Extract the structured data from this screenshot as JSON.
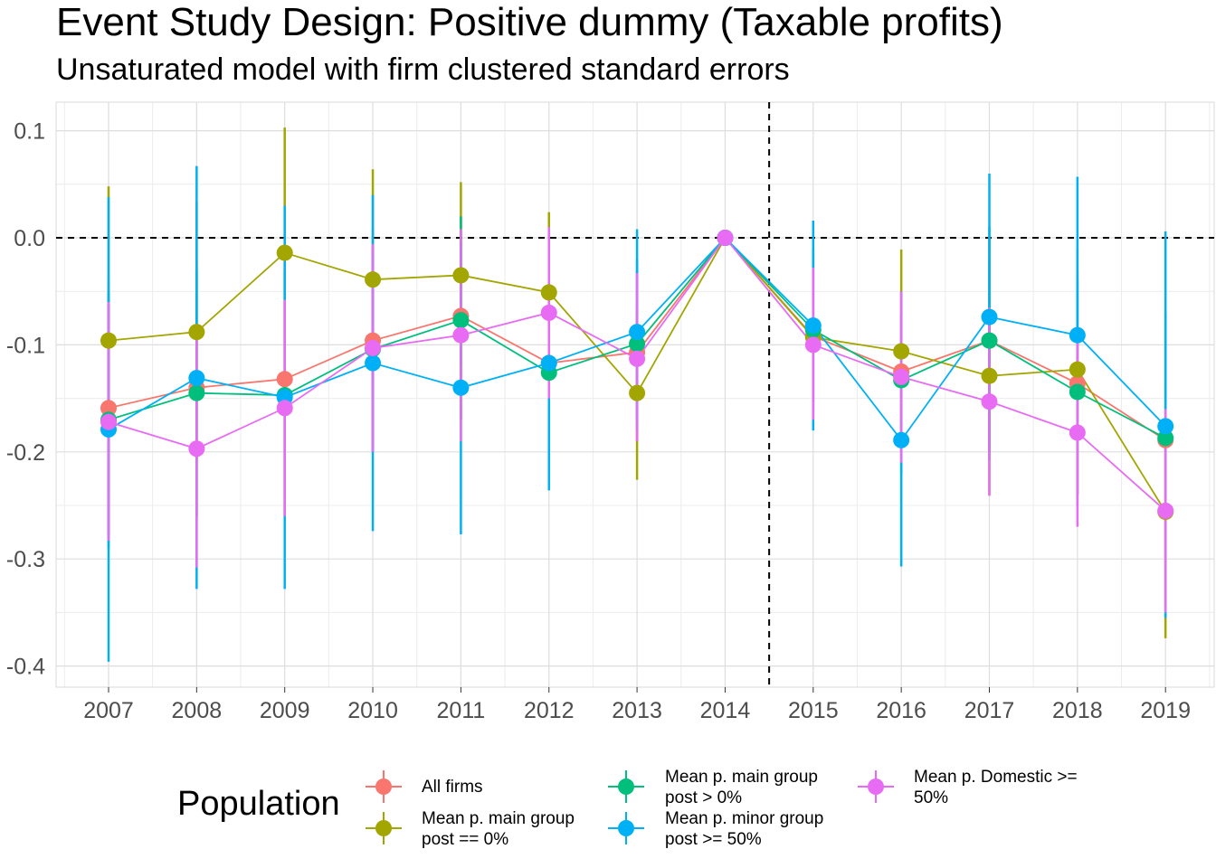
{
  "title": "Event Study Design: Positive dummy (Taxable profits)",
  "subtitle": "Unsaturated model with firm clustered standard errors",
  "chart_data": {
    "type": "line",
    "x": [
      "2007",
      "2008",
      "2009",
      "2010",
      "2011",
      "2012",
      "2013",
      "2014",
      "2015",
      "2016",
      "2017",
      "2018",
      "2019"
    ],
    "ylim": [
      -0.42,
      0.125
    ],
    "yticks": [
      "0.1",
      "0.0",
      "-0.1",
      "-0.2",
      "-0.3",
      "-0.4"
    ],
    "ytick_values": [
      0.1,
      0.0,
      -0.1,
      -0.2,
      -0.3,
      -0.4
    ],
    "reference_lines": {
      "h": 0.0,
      "v_between": [
        "2014",
        "2015"
      ]
    },
    "grid": true,
    "legend": {
      "title": "Population",
      "position": "bottom"
    },
    "series": [
      {
        "name": "All firms",
        "color": "#F8766D",
        "values": [
          -0.159,
          -0.14,
          -0.132,
          -0.096,
          -0.073,
          -0.117,
          -0.107,
          0,
          -0.092,
          -0.125,
          -0.096,
          -0.136,
          -0.189
        ],
        "lower": [
          -0.28,
          -0.26,
          -0.26,
          -0.2,
          -0.17,
          -0.2,
          -0.19,
          0,
          -0.17,
          -0.2,
          -0.2,
          -0.24,
          -0.3
        ],
        "upper": [
          -0.04,
          -0.02,
          -0.01,
          0.01,
          0.02,
          -0.03,
          -0.03,
          0,
          -0.01,
          -0.05,
          0.0,
          -0.03,
          -0.08
        ]
      },
      {
        "name": "Mean p. main group\npost == 0%",
        "color": "#A3A500",
        "values": [
          -0.096,
          -0.088,
          -0.014,
          -0.039,
          -0.035,
          -0.051,
          -0.145,
          0,
          -0.093,
          -0.106,
          -0.129,
          -0.123,
          -0.256
        ],
        "lower": [
          -0.24,
          -0.21,
          -0.13,
          -0.14,
          -0.12,
          -0.13,
          -0.226,
          0,
          -0.17,
          -0.2,
          -0.24,
          -0.24,
          -0.374
        ],
        "upper": [
          0.048,
          0.034,
          0.103,
          0.064,
          0.052,
          0.024,
          -0.064,
          0,
          -0.01,
          -0.011,
          -0.02,
          -0.01,
          -0.138
        ]
      },
      {
        "name": "Mean p. main group\npost > 0%",
        "color": "#00BF7D",
        "values": [
          -0.17,
          -0.145,
          -0.147,
          -0.104,
          -0.077,
          -0.126,
          -0.099,
          0,
          -0.086,
          -0.133,
          -0.096,
          -0.144,
          -0.187
        ],
        "lower": [
          -0.29,
          -0.26,
          -0.26,
          -0.2,
          -0.17,
          -0.21,
          -0.18,
          0,
          -0.16,
          -0.22,
          -0.2,
          -0.25,
          -0.3
        ],
        "upper": [
          -0.05,
          -0.03,
          -0.03,
          -0.01,
          0.02,
          -0.04,
          -0.02,
          0,
          -0.01,
          -0.05,
          0.01,
          -0.04,
          -0.07
        ]
      },
      {
        "name": "Mean p. minor group\npost >= 50%",
        "color": "#00B0F6",
        "values": [
          -0.179,
          -0.131,
          -0.149,
          -0.117,
          -0.14,
          -0.117,
          -0.088,
          0,
          -0.082,
          -0.189,
          -0.074,
          -0.091,
          -0.176
        ],
        "lower": [
          -0.396,
          -0.328,
          -0.328,
          -0.274,
          -0.277,
          -0.236,
          -0.17,
          0,
          -0.18,
          -0.307,
          -0.208,
          -0.24,
          -0.355
        ],
        "upper": [
          0.038,
          0.067,
          0.03,
          0.04,
          -0.003,
          0.003,
          0.008,
          0,
          0.016,
          -0.071,
          0.06,
          0.057,
          0.006
        ]
      },
      {
        "name": "Mean p. Domestic >=\n50%",
        "color": "#E76BF3",
        "values": [
          -0.172,
          -0.197,
          -0.159,
          -0.103,
          -0.091,
          -0.07,
          -0.113,
          0,
          -0.1,
          -0.13,
          -0.153,
          -0.182,
          -0.255
        ],
        "lower": [
          -0.283,
          -0.308,
          -0.26,
          -0.2,
          -0.19,
          -0.15,
          -0.19,
          0,
          -0.17,
          -0.21,
          -0.241,
          -0.27,
          -0.35
        ],
        "upper": [
          -0.06,
          -0.086,
          -0.058,
          -0.006,
          0.008,
          0.01,
          -0.033,
          0,
          -0.028,
          -0.05,
          -0.065,
          -0.094,
          -0.16
        ]
      }
    ]
  }
}
